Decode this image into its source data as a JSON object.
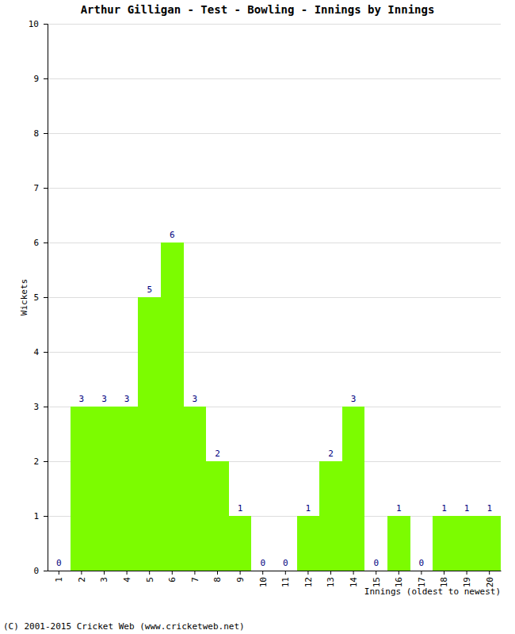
{
  "chart_data": {
    "type": "bar",
    "title": "Arthur Gilligan - Test - Bowling - Innings by Innings",
    "x_label": "Innings (oldest to newest)",
    "y_label": "Wickets",
    "annotations": [
      "(C) 2001-2015 Cricket Web (www.cricketweb.net)"
    ],
    "categories": [
      "1",
      "2",
      "3",
      "4",
      "5",
      "6",
      "7",
      "8",
      "9",
      "10",
      "11",
      "12",
      "13",
      "14",
      "15",
      "16",
      "17",
      "18",
      "19",
      "20"
    ],
    "values": [
      0,
      3,
      3,
      3,
      5,
      6,
      3,
      2,
      1,
      0,
      0,
      1,
      2,
      3,
      0,
      1,
      0,
      1,
      1,
      1
    ],
    "color": "#7cfc00",
    "ylim": [
      0,
      10
    ],
    "yticks": [
      0,
      1,
      2,
      3,
      4,
      5,
      6,
      7,
      8,
      9,
      10
    ],
    "grid": true,
    "data_labels": true
  }
}
